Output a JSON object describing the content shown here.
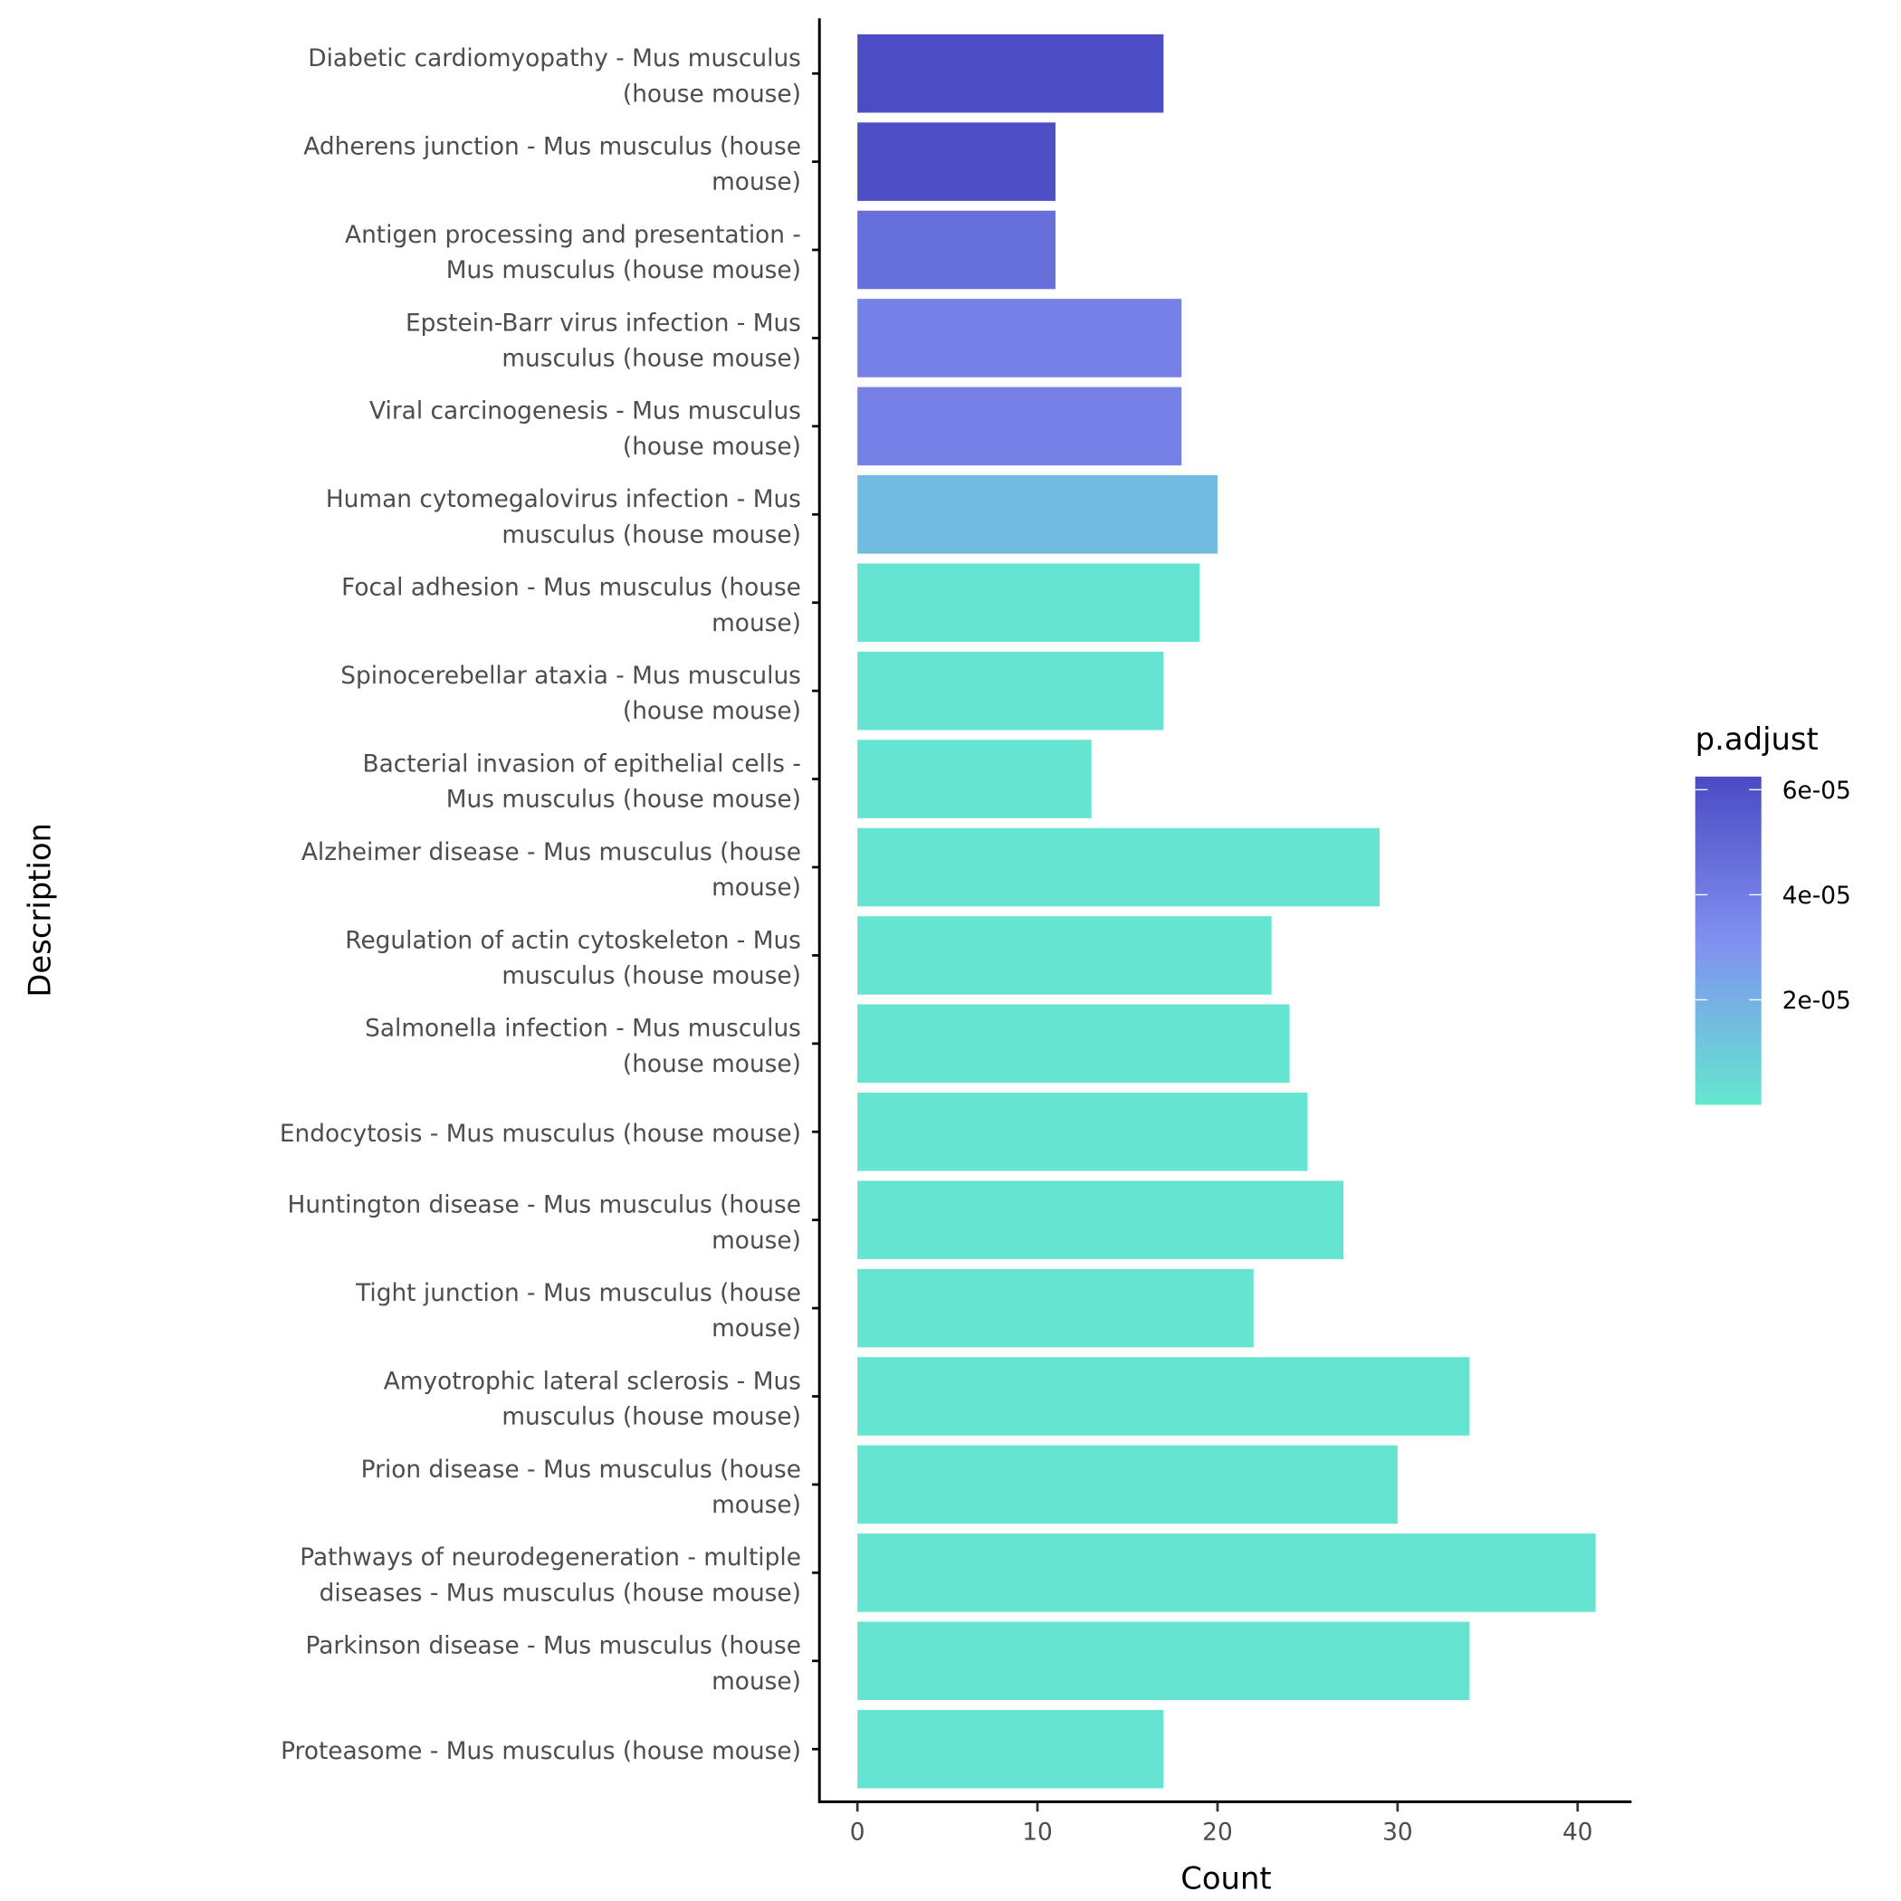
{
  "chart_data": {
    "type": "bar",
    "orientation": "horizontal",
    "xlabel": "Count",
    "ylabel": "Description",
    "xlim": [
      -2.1,
      43
    ],
    "xticks": [
      0,
      10,
      20,
      30,
      40
    ],
    "grid": false,
    "legend_position": "right",
    "color_legend": {
      "title": "p.adjust",
      "range": [
        0,
        6.25e-05
      ],
      "ticks": [
        2e-05,
        4e-05,
        6e-05
      ],
      "tick_labels": [
        "2e-05",
        "4e-05",
        "6e-05"
      ],
      "colors": {
        "low": "#64e8d0",
        "mid": "#8090f0",
        "high": "#4b4bc4"
      }
    },
    "categories": [
      [
        "Diabetic cardiomyopathy - Mus musculus",
        "(house mouse)"
      ],
      [
        "Adherens junction - Mus musculus (house",
        "mouse)"
      ],
      [
        "Antigen processing and presentation -",
        "Mus musculus (house mouse)"
      ],
      [
        "Epstein-Barr virus infection - Mus",
        "musculus (house mouse)"
      ],
      [
        "Viral carcinogenesis - Mus musculus",
        "(house mouse)"
      ],
      [
        "Human cytomegalovirus infection - Mus",
        "musculus (house mouse)"
      ],
      [
        "Focal adhesion - Mus musculus (house",
        "mouse)"
      ],
      [
        "Spinocerebellar ataxia - Mus musculus",
        "(house mouse)"
      ],
      [
        "Bacterial invasion of epithelial cells -",
        "Mus musculus (house mouse)"
      ],
      [
        "Alzheimer disease - Mus musculus (house",
        "mouse)"
      ],
      [
        "Regulation of actin cytoskeleton - Mus",
        "musculus (house mouse)"
      ],
      [
        "Salmonella infection - Mus musculus",
        "(house mouse)"
      ],
      [
        "Endocytosis - Mus musculus (house mouse)"
      ],
      [
        "Huntington disease - Mus musculus (house",
        "mouse)"
      ],
      [
        "Tight junction - Mus musculus (house",
        "mouse)"
      ],
      [
        "Amyotrophic lateral sclerosis - Mus",
        "musculus (house mouse)"
      ],
      [
        "Prion disease - Mus musculus (house",
        "mouse)"
      ],
      [
        "Pathways of neurodegeneration - multiple",
        "diseases - Mus musculus (house mouse)"
      ],
      [
        "Parkinson disease - Mus musculus (house",
        "mouse)"
      ],
      [
        "Proteasome - Mus musculus (house mouse)"
      ]
    ],
    "values": [
      17,
      11,
      11,
      18,
      18,
      20,
      19,
      17,
      13,
      29,
      23,
      24,
      25,
      27,
      22,
      34,
      30,
      41,
      34,
      17
    ],
    "p_adjust": [
      6.2e-05,
      6.1e-05,
      4.6e-05,
      3.8e-05,
      3.8e-05,
      1.6e-05,
      1e-06,
      1e-06,
      1e-06,
      1e-06,
      1e-06,
      1e-06,
      1e-06,
      1e-06,
      1e-06,
      1e-06,
      1e-06,
      1e-06,
      1e-06,
      1e-06
    ]
  }
}
